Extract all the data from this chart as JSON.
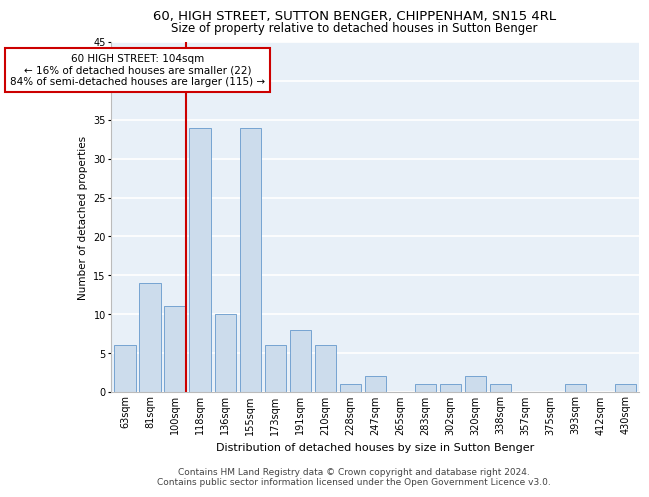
{
  "title1": "60, HIGH STREET, SUTTON BENGER, CHIPPENHAM, SN15 4RL",
  "title2": "Size of property relative to detached houses in Sutton Benger",
  "xlabel": "Distribution of detached houses by size in Sutton Benger",
  "ylabel": "Number of detached properties",
  "categories": [
    "63sqm",
    "81sqm",
    "100sqm",
    "118sqm",
    "136sqm",
    "155sqm",
    "173sqm",
    "191sqm",
    "210sqm",
    "228sqm",
    "247sqm",
    "265sqm",
    "283sqm",
    "302sqm",
    "320sqm",
    "338sqm",
    "357sqm",
    "375sqm",
    "393sqm",
    "412sqm",
    "430sqm"
  ],
  "values": [
    6,
    14,
    11,
    34,
    10,
    34,
    6,
    8,
    6,
    1,
    2,
    0,
    1,
    1,
    2,
    1,
    0,
    0,
    1,
    0,
    1
  ],
  "bar_color": "#ccdcec",
  "bar_edge_color": "#6699cc",
  "highlight_index": 2,
  "highlight_line_color": "#cc0000",
  "ylim": [
    0,
    45
  ],
  "yticks": [
    0,
    5,
    10,
    15,
    20,
    25,
    30,
    35,
    40,
    45
  ],
  "annotation_text": "60 HIGH STREET: 104sqm\n← 16% of detached houses are smaller (22)\n84% of semi-detached houses are larger (115) →",
  "annotation_box_color": "#ffffff",
  "annotation_box_edge": "#cc0000",
  "footer1": "Contains HM Land Registry data © Crown copyright and database right 2024.",
  "footer2": "Contains public sector information licensed under the Open Government Licence v3.0.",
  "bg_color": "#e8f0f8",
  "grid_color": "#ffffff",
  "title1_fontsize": 9.5,
  "title2_fontsize": 8.5,
  "xlabel_fontsize": 8,
  "ylabel_fontsize": 7.5,
  "tick_fontsize": 7,
  "annotation_fontsize": 7.5,
  "footer_fontsize": 6.5
}
